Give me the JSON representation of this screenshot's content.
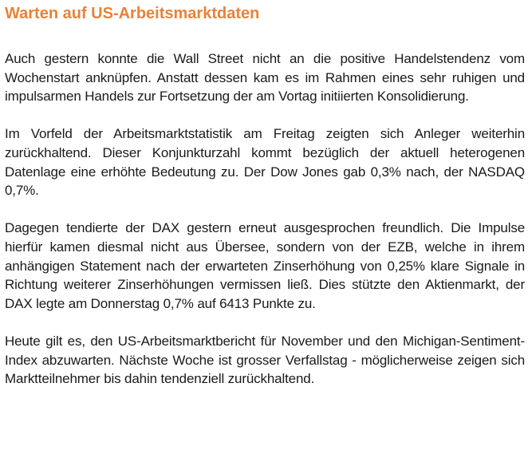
{
  "article": {
    "title": "Warten auf US-Arbeitsmarktdaten",
    "title_color": "#e8823a",
    "paragraphs": [
      "Auch gestern konnte die Wall Street nicht an die positive Handelstendenz vom Wochenstart anknüpfen. Anstatt dessen kam es im Rahmen eines sehr ruhigen und impulsarmen Handels zur Fortsetzung der am Vortag initiierten Konsolidierung.",
      "Im Vorfeld der Arbeitsmarktstatistik am Freitag zeigten sich Anleger weiterhin zurückhaltend. Dieser Konjunkturzahl kommt bezüglich der aktuell heterogenen Datenlage eine erhöhte Bedeutung zu. Der Dow Jones gab 0,3% nach, der NASDAQ 0,7%.",
      "Dagegen tendierte der DAX gestern erneut ausgesprochen freundlich. Die Impulse hierfür kamen diesmal nicht aus Übersee, sondern von der EZB, welche in ihrem anhängigen Statement nach der erwarteten Zinserhöhung von 0,25% klare Signale in Richtung weiterer Zinserhöhungen vermissen ließ. Dies stützte den Aktienmarkt, der DAX legte am Donnerstag 0,7% auf 6413 Punkte zu.",
      "Heute gilt es, den US-Arbeitsmarktbericht für November und den Michigan-Sentiment-Index abzuwarten. Nächste Woche ist grosser Verfallstag - möglicherweise zeigen sich Marktteilnehmer bis dahin tendenziell zurückhaltend."
    ]
  }
}
